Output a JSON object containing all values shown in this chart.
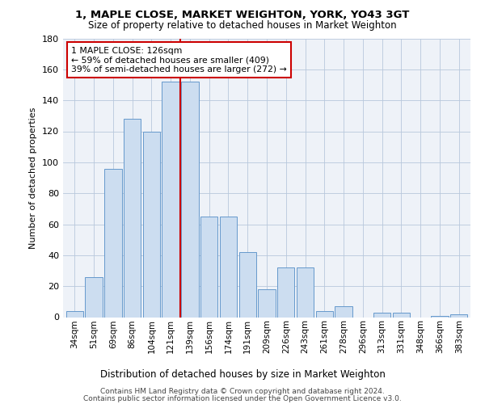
{
  "title": "1, MAPLE CLOSE, MARKET WEIGHTON, YORK, YO43 3GT",
  "subtitle": "Size of property relative to detached houses in Market Weighton",
  "xlabel": "Distribution of detached houses by size in Market Weighton",
  "ylabel": "Number of detached properties",
  "bar_values": [
    4,
    26,
    96,
    128,
    120,
    152,
    152,
    65,
    65,
    42,
    18,
    32,
    32,
    4,
    7,
    0,
    3,
    3,
    0,
    1,
    2
  ],
  "bar_labels": [
    "34sqm",
    "51sqm",
    "69sqm",
    "86sqm",
    "104sqm",
    "121sqm",
    "139sqm",
    "156sqm",
    "174sqm",
    "191sqm",
    "209sqm",
    "226sqm",
    "243sqm",
    "261sqm",
    "278sqm",
    "296sqm",
    "313sqm",
    "331sqm",
    "348sqm",
    "366sqm",
    "383sqm"
  ],
  "bar_color": "#ccddf0",
  "bar_edge_color": "#6699cc",
  "highlight_line_color": "#cc0000",
  "annotation_text": "1 MAPLE CLOSE: 126sqm\n← 59% of detached houses are smaller (409)\n39% of semi-detached houses are larger (272) →",
  "annotation_box_color": "#ffffff",
  "annotation_box_edge": "#cc0000",
  "ylim": [
    0,
    180
  ],
  "yticks": [
    0,
    20,
    40,
    60,
    80,
    100,
    120,
    140,
    160,
    180
  ],
  "footer_line1": "Contains HM Land Registry data © Crown copyright and database right 2024.",
  "footer_line2": "Contains public sector information licensed under the Open Government Licence v3.0.",
  "bg_color": "#eef2f8"
}
